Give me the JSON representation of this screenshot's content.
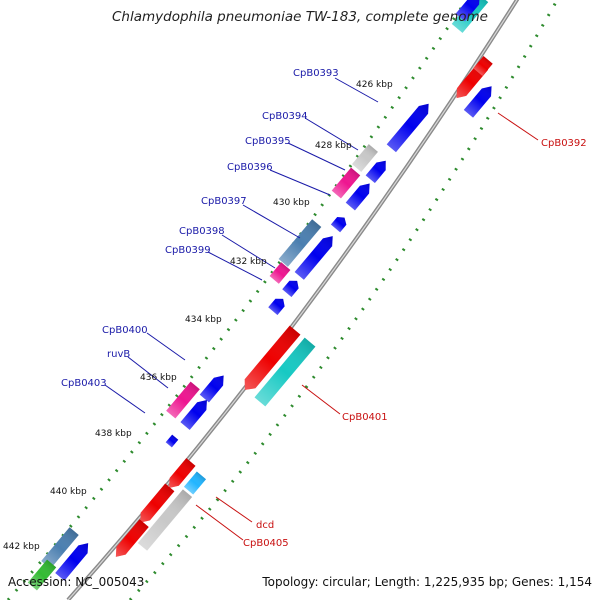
{
  "title": "Chlamydophila pneumoniae TW-183, complete genome",
  "footer": {
    "accession": "Accession: NC_005043",
    "topology": "Topology: circular; Length: 1,225,935 bp; Genes: 1,154"
  },
  "ticks": [
    "426 kbp",
    "428 kbp",
    "430 kbp",
    "432 kbp",
    "434 kbp",
    "436 kbp",
    "438 kbp",
    "440 kbp",
    "442 kbp"
  ],
  "labels_left": [
    "CpB0393",
    "CpB0394",
    "CpB0395",
    "CpB0396",
    "CpB0397",
    "CpB0398",
    "CpB0399",
    "CpB0400",
    "ruvB",
    "CpB0403"
  ],
  "labels_right": [
    "CpB0392",
    "CpB0401",
    "dcd",
    "CpB0405"
  ],
  "colors": {
    "forward": "#0000ee",
    "reverse": "#ee0000",
    "cyan": "#17c9c3",
    "pink": "#ee1590",
    "gray": "#c8c8c8",
    "steel": "#4b7fb0",
    "green": "#33bb33",
    "backbone": "#8a8a8a",
    "tick_green": "#2e8b2e"
  }
}
